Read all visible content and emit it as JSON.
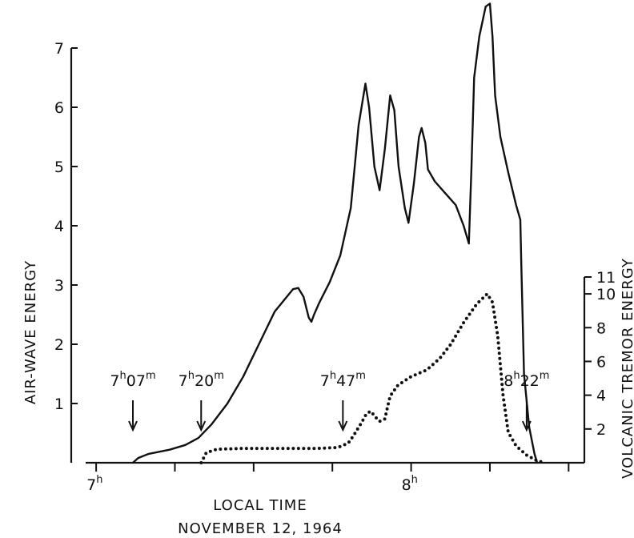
{
  "chart_data": {
    "type": "line",
    "xlabel": "LOCAL TIME",
    "subtitle": "NOVEMBER 12, 1964",
    "x_ticks": [
      {
        "hours": 7,
        "label": "7",
        "sup": "h"
      },
      {
        "hours": 8,
        "label": "8",
        "sup": "h"
      }
    ],
    "xlim_minutes_after_7h": [
      -2,
      93
    ],
    "left_axis": {
      "label": "AIR-WAVE ENERGY",
      "ticks": [
        1,
        2,
        3,
        4,
        5,
        6,
        7
      ],
      "ylim": [
        0,
        7.3
      ]
    },
    "right_axis": {
      "label": "VOLCANIC TREMOR ENERGY",
      "ticks": [
        2,
        4,
        6,
        8,
        10,
        11
      ],
      "ylim": [
        0,
        11.5
      ]
    },
    "annotations": [
      {
        "time": "7:07",
        "h": "7",
        "m": "07"
      },
      {
        "time": "7:20",
        "h": "7",
        "m": "20"
      },
      {
        "time": "7:47",
        "h": "7",
        "m": "47"
      },
      {
        "time": "8:22",
        "h": "8",
        "m": "22"
      }
    ],
    "series": [
      {
        "axis": "left",
        "style": "solid",
        "points": [
          [
            7.0,
            0.0
          ],
          [
            8.0,
            0.08
          ],
          [
            10.0,
            0.15
          ],
          [
            14.0,
            0.22
          ],
          [
            17.0,
            0.3
          ],
          [
            19.5,
            0.42
          ],
          [
            22.0,
            0.65
          ],
          [
            25.0,
            1.0
          ],
          [
            28.0,
            1.45
          ],
          [
            31.0,
            2.0
          ],
          [
            34.0,
            2.55
          ],
          [
            37.5,
            2.93
          ],
          [
            38.5,
            2.95
          ],
          [
            39.5,
            2.8
          ],
          [
            40.5,
            2.45
          ],
          [
            41.0,
            2.38
          ],
          [
            41.5,
            2.5
          ],
          [
            42.5,
            2.7
          ],
          [
            44.5,
            3.05
          ],
          [
            46.5,
            3.5
          ],
          [
            48.5,
            4.3
          ],
          [
            50.0,
            5.7
          ],
          [
            51.3,
            6.4
          ],
          [
            52.0,
            6.0
          ],
          [
            53.0,
            5.0
          ],
          [
            54.0,
            4.6
          ],
          [
            55.0,
            5.3
          ],
          [
            56.0,
            6.2
          ],
          [
            56.8,
            5.95
          ],
          [
            57.6,
            5.0
          ],
          [
            58.8,
            4.3
          ],
          [
            59.5,
            4.05
          ],
          [
            60.5,
            4.7
          ],
          [
            61.5,
            5.5
          ],
          [
            62.0,
            5.65
          ],
          [
            62.7,
            5.4
          ],
          [
            63.2,
            4.95
          ],
          [
            64.5,
            4.75
          ],
          [
            66.5,
            4.55
          ],
          [
            68.5,
            4.35
          ],
          [
            70.0,
            4.0
          ],
          [
            71.0,
            3.7
          ],
          [
            71.5,
            5.0
          ],
          [
            72.0,
            6.5
          ],
          [
            73.0,
            7.2
          ],
          [
            74.2,
            7.7
          ],
          [
            75.0,
            7.75
          ],
          [
            75.5,
            7.2
          ],
          [
            76.0,
            6.2
          ],
          [
            77.0,
            5.5
          ],
          [
            78.5,
            4.9
          ],
          [
            80.0,
            4.35
          ],
          [
            80.8,
            4.1
          ],
          [
            81.0,
            3.3
          ],
          [
            81.5,
            1.5
          ],
          [
            82.5,
            0.6
          ],
          [
            83.5,
            0.15
          ],
          [
            84.0,
            0.0
          ]
        ]
      },
      {
        "axis": "right",
        "style": "dotted",
        "points": [
          [
            20.0,
            0.0
          ],
          [
            21.0,
            0.6
          ],
          [
            23.0,
            0.8
          ],
          [
            28.0,
            0.85
          ],
          [
            36.0,
            0.85
          ],
          [
            42.0,
            0.85
          ],
          [
            46.0,
            0.9
          ],
          [
            48.0,
            1.15
          ],
          [
            49.0,
            1.6
          ],
          [
            50.5,
            2.35
          ],
          [
            51.5,
            2.9
          ],
          [
            52.3,
            3.05
          ],
          [
            53.5,
            2.6
          ],
          [
            54.0,
            2.45
          ],
          [
            55.0,
            2.6
          ],
          [
            55.5,
            3.3
          ],
          [
            56.0,
            3.95
          ],
          [
            57.5,
            4.6
          ],
          [
            60.0,
            5.1
          ],
          [
            63.0,
            5.5
          ],
          [
            65.5,
            6.2
          ],
          [
            67.5,
            7.0
          ],
          [
            70.0,
            8.3
          ],
          [
            72.5,
            9.4
          ],
          [
            74.5,
            10.0
          ],
          [
            75.5,
            9.5
          ],
          [
            76.5,
            7.5
          ],
          [
            77.5,
            4.0
          ],
          [
            78.5,
            1.8
          ],
          [
            80.0,
            1.0
          ],
          [
            82.0,
            0.45
          ],
          [
            84.0,
            0.12
          ],
          [
            85.5,
            0.0
          ]
        ]
      }
    ]
  }
}
